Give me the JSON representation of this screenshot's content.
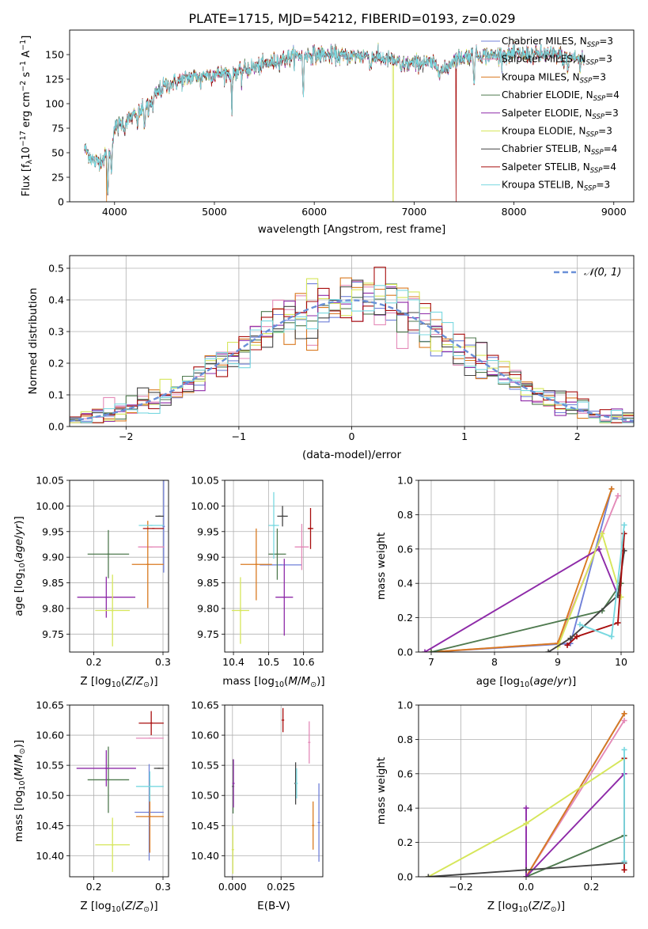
{
  "title": "PLATE=1715, MJD=54212, FIBERID=0193, z=0.029",
  "colors": {
    "Chabrier MILES": "#7080d8",
    "Salpeter MILES": "#e48ab8",
    "Kroupa MILES": "#d97a20",
    "Chabrier ELODIE": "#4f7a4f",
    "Salpeter ELODIE": "#8e2aa8",
    "Kroupa ELODIE": "#d6e65a",
    "Chabrier STELIB": "#444444",
    "Salpeter STELIB": "#a80d0d",
    "Kroupa STELIB": "#78d8e0",
    "gaussian": "#6a90d8"
  },
  "chart_data": [
    {
      "id": "spectrum",
      "type": "line",
      "xlabel": "wavelength [Angstrom, rest frame]",
      "ylabel": "Flux [f_λ10^−17 erg cm^−2 s^−1 A^−1]",
      "xlim": [
        3550,
        9200
      ],
      "ylim": [
        0,
        175
      ],
      "xticks": [
        4000,
        5000,
        6000,
        7000,
        8000,
        9000
      ],
      "yticks": [
        0,
        25,
        50,
        75,
        100,
        125,
        150
      ],
      "grid": false,
      "legend_position": "upper-right",
      "legend": [
        {
          "name": "Chabrier MILES",
          "nssp": "3"
        },
        {
          "name": "Salpeter MILES",
          "nssp": "3"
        },
        {
          "name": "Kroupa MILES",
          "nssp": "3"
        },
        {
          "name": "Chabrier ELODIE",
          "nssp": "4"
        },
        {
          "name": "Salpeter ELODIE",
          "nssp": "3"
        },
        {
          "name": "Kroupa ELODIE",
          "nssp": "3"
        },
        {
          "name": "Chabrier STELIB",
          "nssp": "4"
        },
        {
          "name": "Salpeter STELIB",
          "nssp": "4"
        },
        {
          "name": "Kroupa STELIB",
          "nssp": "3"
        }
      ],
      "continuum": [
        [
          3700,
          55
        ],
        [
          3800,
          40
        ],
        [
          3900,
          45
        ],
        [
          3960,
          55
        ],
        [
          4000,
          75
        ],
        [
          4100,
          82
        ],
        [
          4200,
          88
        ],
        [
          4300,
          95
        ],
        [
          4400,
          108
        ],
        [
          4500,
          118
        ],
        [
          4700,
          125
        ],
        [
          4800,
          128
        ],
        [
          5000,
          130
        ],
        [
          5200,
          132
        ],
        [
          5400,
          137
        ],
        [
          5600,
          143
        ],
        [
          5800,
          148
        ],
        [
          5900,
          150
        ],
        [
          6100,
          150
        ],
        [
          6300,
          148
        ],
        [
          6500,
          149
        ],
        [
          6700,
          146
        ],
        [
          6900,
          140
        ],
        [
          7100,
          142
        ],
        [
          7200,
          140
        ],
        [
          7300,
          133
        ],
        [
          7400,
          145
        ],
        [
          7600,
          150
        ],
        [
          7800,
          149
        ],
        [
          8000,
          150
        ],
        [
          8200,
          150
        ],
        [
          8400,
          150
        ],
        [
          8600,
          147
        ],
        [
          8700,
          145
        ]
      ],
      "absorption_lines": [
        [
          3933,
          45
        ],
        [
          3968,
          30
        ],
        [
          4102,
          10
        ],
        [
          4227,
          12
        ],
        [
          4300,
          18
        ],
        [
          4340,
          12
        ],
        [
          4383,
          12
        ],
        [
          4861,
          10
        ],
        [
          5175,
          35
        ],
        [
          5270,
          10
        ],
        [
          5890,
          40
        ],
        [
          6563,
          12
        ],
        [
          6870,
          10
        ],
        [
          7600,
          25
        ],
        [
          8498,
          10
        ],
        [
          8542,
          15
        ],
        [
          8662,
          12
        ]
      ],
      "drops": [
        {
          "x": 6790,
          "y": 0
        },
        {
          "x": 7420,
          "y": 0
        },
        {
          "x": 3920,
          "y": 0
        }
      ]
    },
    {
      "id": "residual-histogram",
      "type": "line",
      "xlabel": "(data-model)/error",
      "ylabel": "Normed distribution",
      "xlim": [
        -2.5,
        2.5
      ],
      "ylim": [
        0,
        0.54
      ],
      "xticks": [
        -2,
        -1,
        0,
        1,
        2
      ],
      "yticks": [
        0.0,
        0.1,
        0.2,
        0.3,
        0.4,
        0.5
      ],
      "grid": true,
      "legend_position": "upper-right",
      "gaussian_label": "𝒩(0, 1)",
      "histogram_bins": 50,
      "histogram_range": [
        -2.5,
        2.5
      ]
    },
    {
      "id": "age-vs-Z",
      "type": "scatter",
      "xlabel": "Z [log10(Z/Z⊙)]",
      "ylabel": "age [log10(age/yr)]",
      "xlim": [
        0.165,
        0.308
      ],
      "ylim": [
        9.715,
        10.05
      ],
      "xticks": [
        0.2,
        0.3
      ],
      "yticks": [
        9.75,
        9.8,
        9.85,
        9.9,
        9.95,
        10.0,
        10.05
      ],
      "grid": true,
      "points": [
        {
          "series": "Chabrier MILES",
          "x": 0.301,
          "y": 9.96,
          "xerr": 0.001,
          "yerr": 0.09
        },
        {
          "series": "Salpeter MILES",
          "x": 0.283,
          "y": 9.92,
          "xerr": 0.019,
          "yerr": 0.0
        },
        {
          "series": "Kroupa MILES",
          "x": 0.278,
          "y": 9.886,
          "xerr": 0.023,
          "yerr": 0.085
        },
        {
          "series": "Chabrier ELODIE",
          "x": 0.221,
          "y": 9.906,
          "xerr": 0.03,
          "yerr": 0.047
        },
        {
          "series": "Salpeter ELODIE",
          "x": 0.218,
          "y": 9.822,
          "xerr": 0.042,
          "yerr": 0.04
        },
        {
          "series": "Kroupa ELODIE",
          "x": 0.227,
          "y": 9.796,
          "xerr": 0.025,
          "yerr": 0.07
        },
        {
          "series": "Chabrier STELIB",
          "x": 0.295,
          "y": 9.98,
          "xerr": 0.006,
          "yerr": 0.0
        },
        {
          "series": "Salpeter STELIB",
          "x": 0.286,
          "y": 9.956,
          "xerr": 0.015,
          "yerr": 0.0
        },
        {
          "series": "Kroupa STELIB",
          "x": 0.283,
          "y": 9.962,
          "xerr": 0.018,
          "yerr": 0.0
        }
      ]
    },
    {
      "id": "age-vs-mass",
      "type": "scatter",
      "xlabel": "mass [log10(M/M⊙)]",
      "ylabel": "",
      "xlim": [
        10.375,
        10.655
      ],
      "ylim": [
        9.715,
        10.05
      ],
      "xticks": [
        10.4,
        10.5,
        10.6
      ],
      "yticks": [
        9.75,
        9.8,
        9.85,
        9.9,
        9.95,
        10.0,
        10.05
      ],
      "grid": true,
      "points": [
        {
          "series": "Chabrier MILES",
          "x": 10.535,
          "y": 9.885,
          "xerr": 0.06,
          "yerr": 0.0
        },
        {
          "series": "Salpeter MILES",
          "x": 10.595,
          "y": 9.92,
          "xerr": 0.02,
          "yerr": 0.045
        },
        {
          "series": "Kroupa MILES",
          "x": 10.465,
          "y": 9.886,
          "xerr": 0.045,
          "yerr": 0.07
        },
        {
          "series": "Chabrier ELODIE",
          "x": 10.525,
          "y": 9.906,
          "xerr": 0.025,
          "yerr": 0.05
        },
        {
          "series": "Salpeter ELODIE",
          "x": 10.545,
          "y": 9.822,
          "xerr": 0.025,
          "yerr": 0.075
        },
        {
          "series": "Kroupa ELODIE",
          "x": 10.42,
          "y": 9.796,
          "xerr": 0.025,
          "yerr": 0.065
        },
        {
          "series": "Chabrier STELIB",
          "x": 10.54,
          "y": 9.98,
          "xerr": 0.015,
          "yerr": 0.02
        },
        {
          "series": "Salpeter STELIB",
          "x": 10.62,
          "y": 9.956,
          "xerr": 0.008,
          "yerr": 0.04
        },
        {
          "series": "Kroupa STELIB",
          "x": 10.515,
          "y": 9.962,
          "xerr": 0.015,
          "yerr": 0.065
        }
      ]
    },
    {
      "id": "weight-vs-age",
      "type": "line",
      "xlabel": "age [log10(age/yr)]",
      "ylabel": "mass weight",
      "xlim": [
        6.8,
        10.2
      ],
      "ylim": [
        0,
        1.0
      ],
      "xticks": [
        7,
        8,
        9,
        10
      ],
      "yticks": [
        0.0,
        0.2,
        0.4,
        0.6,
        0.8,
        1.0
      ],
      "grid": true,
      "series": [
        {
          "name": "Chabrier MILES",
          "points": [
            [
              7.0,
              0.0
            ],
            [
              9.2,
              0.05
            ],
            [
              9.85,
              0.95
            ]
          ]
        },
        {
          "name": "Salpeter MILES",
          "points": [
            [
              7.0,
              0.0
            ],
            [
              9.0,
              0.05
            ],
            [
              9.95,
              0.91
            ]
          ]
        },
        {
          "name": "Kroupa MILES",
          "points": [
            [
              7.0,
              0.0
            ],
            [
              9.0,
              0.05
            ],
            [
              9.85,
              0.95
            ]
          ]
        },
        {
          "name": "Chabrier ELODIE",
          "points": [
            [
              7.0,
              0.0
            ],
            [
              9.7,
              0.24
            ],
            [
              10.0,
              0.4
            ]
          ]
        },
        {
          "name": "Salpeter ELODIE",
          "points": [
            [
              6.9,
              0.0
            ],
            [
              9.65,
              0.6
            ],
            [
              9.95,
              0.33
            ]
          ]
        },
        {
          "name": "Kroupa ELODIE",
          "points": [
            [
              9.0,
              0.03
            ],
            [
              9.7,
              0.69
            ],
            [
              10.0,
              0.32
            ]
          ]
        },
        {
          "name": "Chabrier STELIB",
          "points": [
            [
              8.85,
              0.0
            ],
            [
              9.2,
              0.08
            ],
            [
              9.95,
              0.33
            ],
            [
              10.05,
              0.59
            ]
          ]
        },
        {
          "name": "Salpeter STELIB",
          "points": [
            [
              9.15,
              0.04
            ],
            [
              9.3,
              0.09
            ],
            [
              9.95,
              0.17
            ],
            [
              10.05,
              0.69
            ]
          ]
        },
        {
          "name": "Kroupa STELIB",
          "points": [
            [
              9.35,
              0.16
            ],
            [
              9.85,
              0.09
            ],
            [
              10.05,
              0.74
            ]
          ]
        }
      ]
    },
    {
      "id": "mass-vs-Z",
      "type": "scatter",
      "xlabel": "Z [log10(Z/Z⊙)]",
      "ylabel": "mass [log10(M/M⊙)]",
      "xlim": [
        0.165,
        0.308
      ],
      "ylim": [
        10.365,
        10.65
      ],
      "xticks": [
        0.2,
        0.3
      ],
      "yticks": [
        10.4,
        10.45,
        10.5,
        10.55,
        10.6,
        10.65
      ],
      "grid": true,
      "points": [
        {
          "series": "Chabrier MILES",
          "x": 0.28,
          "y": 10.472,
          "xerr": 0.021,
          "yerr": 0.08
        },
        {
          "series": "Salpeter MILES",
          "x": 0.281,
          "y": 10.595,
          "xerr": 0.02,
          "yerr": 0.0
        },
        {
          "series": "Kroupa MILES",
          "x": 0.281,
          "y": 10.465,
          "xerr": 0.02,
          "yerr": 0.06
        },
        {
          "series": "Chabrier ELODIE",
          "x": 0.221,
          "y": 10.526,
          "xerr": 0.03,
          "yerr": 0.055
        },
        {
          "series": "Salpeter ELODIE",
          "x": 0.218,
          "y": 10.545,
          "xerr": 0.043,
          "yerr": 0.03
        },
        {
          "series": "Kroupa ELODIE",
          "x": 0.227,
          "y": 10.418,
          "xerr": 0.025,
          "yerr": 0.045
        },
        {
          "series": "Chabrier STELIB",
          "x": 0.294,
          "y": 10.545,
          "xerr": 0.007,
          "yerr": 0.0
        },
        {
          "series": "Salpeter STELIB",
          "x": 0.283,
          "y": 10.62,
          "xerr": 0.018,
          "yerr": 0.02
        },
        {
          "series": "Kroupa STELIB",
          "x": 0.281,
          "y": 10.515,
          "xerr": 0.02,
          "yerr": 0.025
        }
      ]
    },
    {
      "id": "mass-vs-ebv",
      "type": "scatter",
      "xlabel": "E(B-V)",
      "ylabel": "",
      "xlim": [
        -0.004,
        0.0465
      ],
      "ylim": [
        10.365,
        10.65
      ],
      "xticks": [
        0.0,
        0.025
      ],
      "yticks": [
        10.4,
        10.45,
        10.5,
        10.55,
        10.6,
        10.65
      ],
      "grid": true,
      "points": [
        {
          "series": "Chabrier MILES",
          "x": 0.0445,
          "y": 10.455,
          "xerr": 0.0,
          "yerr": 0.065
        },
        {
          "series": "Salpeter MILES",
          "x": 0.0395,
          "y": 10.588,
          "xerr": 0.0,
          "yerr": 0.035
        },
        {
          "series": "Kroupa MILES",
          "x": 0.0415,
          "y": 10.45,
          "xerr": 0.0,
          "yerr": 0.04
        },
        {
          "series": "Chabrier ELODIE",
          "x": 0.0003,
          "y": 10.515,
          "xerr": 0.0,
          "yerr": 0.045
        },
        {
          "series": "Salpeter ELODIE",
          "x": 0.0005,
          "y": 10.52,
          "xerr": 0.0,
          "yerr": 0.04
        },
        {
          "series": "Kroupa ELODIE",
          "x": 0.0002,
          "y": 10.41,
          "xerr": 0.0,
          "yerr": 0.04
        },
        {
          "series": "Chabrier STELIB",
          "x": 0.0325,
          "y": 10.52,
          "xerr": 0.0,
          "yerr": 0.035
        },
        {
          "series": "Salpeter STELIB",
          "x": 0.026,
          "y": 10.625,
          "xerr": 0.0,
          "yerr": 0.02
        },
        {
          "series": "Kroupa STELIB",
          "x": 0.033,
          "y": 10.52,
          "xerr": 0.0,
          "yerr": 0.025
        }
      ]
    },
    {
      "id": "weight-vs-Z",
      "type": "line",
      "xlabel": "Z [log10(Z/Z⊙)]",
      "ylabel": "mass weight",
      "xlim": [
        -0.33,
        0.33
      ],
      "ylim": [
        0,
        1.0
      ],
      "xticks": [
        -0.2,
        0.0,
        0.2
      ],
      "yticks": [
        0.0,
        0.2,
        0.4,
        0.6,
        0.8,
        1.0
      ],
      "grid": true,
      "series": [
        {
          "name": "Chabrier MILES",
          "points": [
            [
              0.0,
              0.0
            ],
            [
              0.301,
              0.95
            ]
          ]
        },
        {
          "name": "Salpeter MILES",
          "points": [
            [
              0.0,
              0.0
            ],
            [
              0.301,
              0.91
            ]
          ]
        },
        {
          "name": "Kroupa MILES",
          "points": [
            [
              0.0,
              0.0
            ],
            [
              0.301,
              0.95
            ]
          ]
        },
        {
          "name": "Chabrier ELODIE",
          "points": [
            [
              0.0,
              0.0
            ],
            [
              0.301,
              0.24
            ]
          ]
        },
        {
          "name": "Salpeter ELODIE",
          "points": [
            [
              0.0,
              0.4
            ],
            [
              0.0,
              0.0
            ],
            [
              0.301,
              0.6
            ]
          ]
        },
        {
          "name": "Kroupa ELODIE",
          "points": [
            [
              -0.3,
              0.0
            ],
            [
              0.0,
              0.31
            ],
            [
              0.301,
              0.69
            ]
          ]
        },
        {
          "name": "Chabrier STELIB",
          "points": [
            [
              -0.3,
              0.0
            ],
            [
              0.0,
              0.04
            ],
            [
              0.301,
              0.08
            ]
          ]
        },
        {
          "name": "Salpeter STELIB",
          "points": [
            [
              0.301,
              0.04
            ],
            [
              0.301,
              0.69
            ]
          ]
        },
        {
          "name": "Kroupa STELIB",
          "points": [
            [
              0.301,
              0.09
            ],
            [
              0.301,
              0.74
            ]
          ]
        }
      ]
    }
  ]
}
